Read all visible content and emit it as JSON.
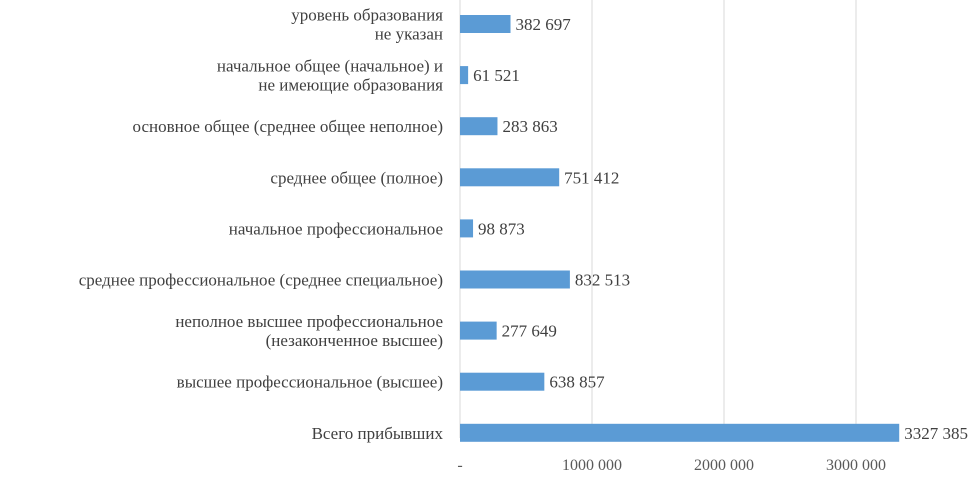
{
  "chart_data": {
    "type": "bar",
    "orientation": "horizontal",
    "categories": [
      [
        "уровень образования",
        "не указан"
      ],
      [
        "начальное общее (начальное) и",
        "не имеющие образования"
      ],
      [
        "основное общее (среднее общее неполное)"
      ],
      [
        "среднее общее (полное)"
      ],
      [
        "начальное профессиональное"
      ],
      [
        "среднее профессиональное (среднее специальное)"
      ],
      [
        "неполное высшее профессиональное",
        "(незаконченное высшее)"
      ],
      [
        "высшее профессиональное (высшее)"
      ],
      [
        "Всего прибывших"
      ]
    ],
    "values": [
      382697,
      61521,
      283863,
      751412,
      98873,
      832513,
      277649,
      638857,
      3327385
    ],
    "value_labels": [
      "382 697",
      "61 521",
      "283 863",
      "751 412",
      "98 873",
      "832 513",
      "277 649",
      "638 857",
      "3327 385"
    ],
    "xlim": [
      0,
      3500000
    ],
    "xticks": [
      0,
      1000000,
      2000000,
      3000000
    ],
    "xtick_labels": [
      "-",
      "1000 000",
      "2000 000",
      "3000 000"
    ],
    "grid": "vertical",
    "bar_color": "#5b9bd5",
    "grid_color": "#d9d9d9",
    "text_color": "#404040"
  }
}
